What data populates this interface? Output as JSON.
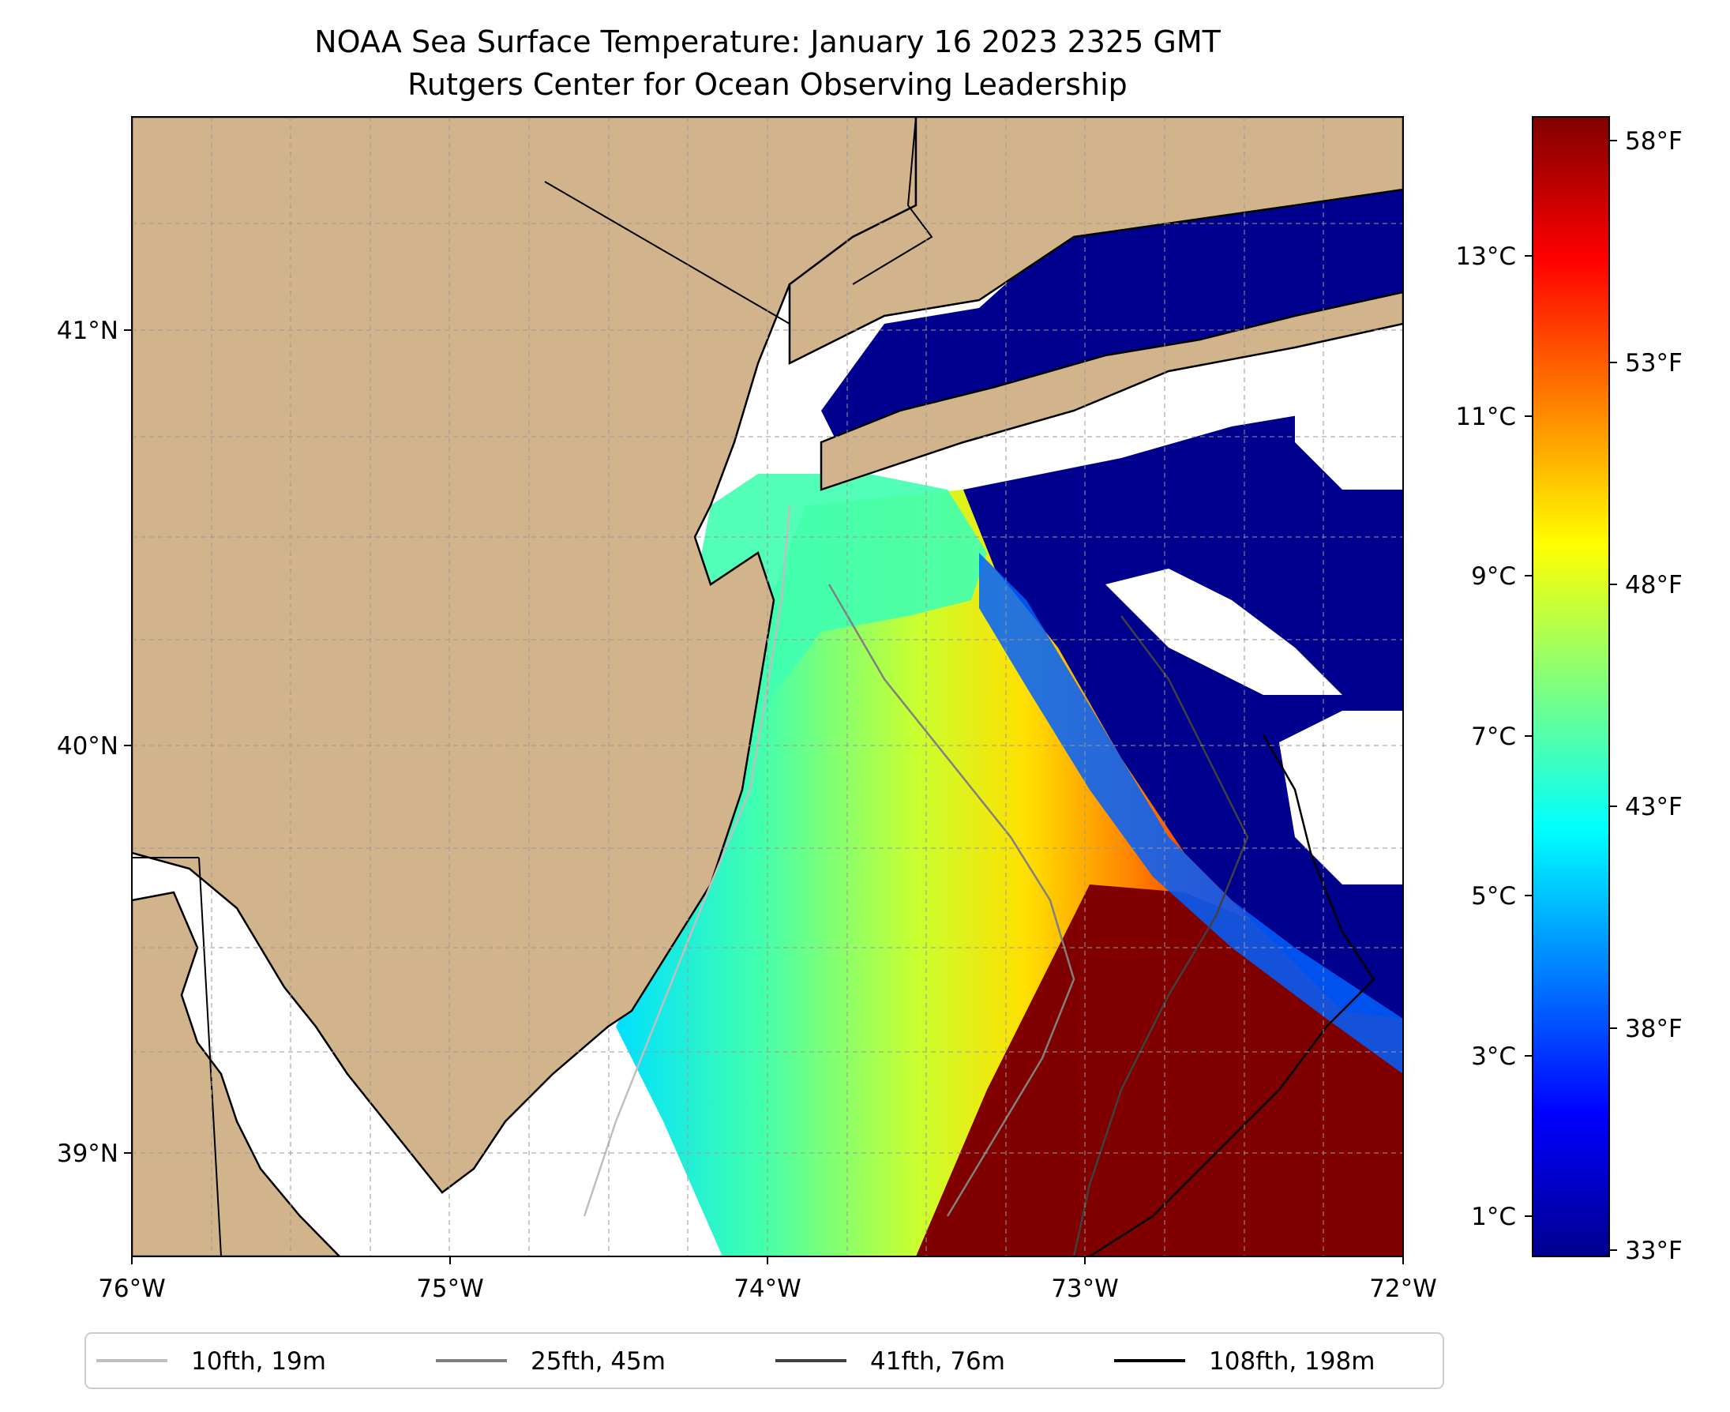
{
  "title": {
    "line1": "NOAA Sea Surface Temperature: January 16 2023 2325 GMT",
    "line2": "Rutgers Center for Ocean Observing Leadership"
  },
  "map": {
    "lon_range": [
      -76,
      -72
    ],
    "lat_range": [
      38.72,
      41.52
    ],
    "lon_ticks": [
      "76°W",
      "75°W",
      "74°W",
      "73°W",
      "72°W"
    ],
    "lat_ticks": [
      "41°N",
      "40°N",
      "39°N"
    ],
    "grid": true,
    "land_color": "#D2B48C",
    "ocean_nodata_color": "#ffffff"
  },
  "colorbar": {
    "colormap": "jet",
    "celsius_ticks": [
      "13°C",
      "11°C",
      "9°C",
      "7°C",
      "5°C",
      "3°C",
      "1°C"
    ],
    "fahrenheit_ticks": [
      "58°F",
      "53°F",
      "48°F",
      "43°F",
      "38°F",
      "33°F"
    ],
    "range_f": [
      33,
      59
    ]
  },
  "legend": {
    "items": [
      {
        "label": "10fth, 19m",
        "color": "#bfbfbf"
      },
      {
        "label": "25fth, 45m",
        "color": "#808080"
      },
      {
        "label": "41fth, 76m",
        "color": "#404040"
      },
      {
        "label": "108fth, 198m",
        "color": "#000000"
      }
    ]
  }
}
